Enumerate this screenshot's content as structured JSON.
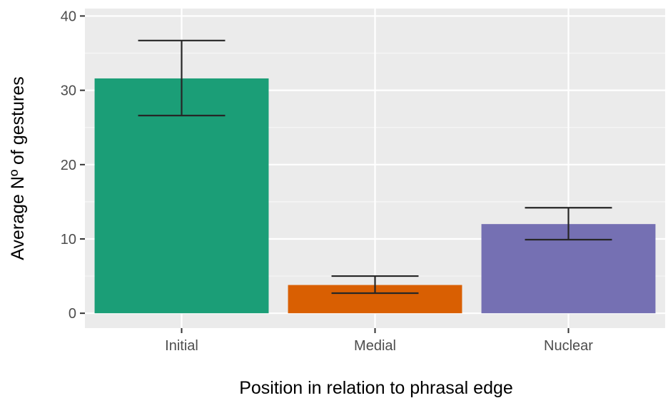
{
  "chart_data": {
    "type": "bar",
    "title": "",
    "xlabel": "Position in relation to phrasal edge",
    "ylabel": "Average Nº of gestures",
    "categories": [
      "Initial",
      "Medial",
      "Nuclear"
    ],
    "values": [
      31.6,
      3.8,
      12.0
    ],
    "error_low": [
      26.6,
      2.7,
      9.9
    ],
    "error_high": [
      36.7,
      5.0,
      14.2
    ],
    "colors": [
      "#1b9e77",
      "#d95f02",
      "#7570b3"
    ],
    "ylim": [
      -2,
      41
    ],
    "yticks": [
      0,
      10,
      20,
      30,
      40
    ],
    "grid": true,
    "panel_background": "#ebebeb",
    "legend": "none"
  }
}
